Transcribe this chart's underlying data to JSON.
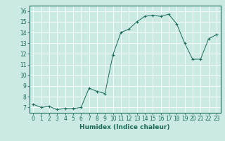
{
  "title": "",
  "xlabel": "Humidex (Indice chaleur)",
  "ylabel": "",
  "x_values": [
    0,
    1,
    2,
    3,
    4,
    5,
    6,
    7,
    8,
    9,
    10,
    11,
    12,
    13,
    14,
    15,
    16,
    17,
    18,
    19,
    20,
    21,
    22,
    23
  ],
  "y_values": [
    7.3,
    7.0,
    7.1,
    6.8,
    6.9,
    6.9,
    7.0,
    8.8,
    8.5,
    8.3,
    11.9,
    14.0,
    14.3,
    15.0,
    15.5,
    15.6,
    15.5,
    15.7,
    14.8,
    13.0,
    11.5,
    11.5,
    13.4,
    13.8
  ],
  "xlim": [
    -0.5,
    23.5
  ],
  "ylim": [
    6.5,
    16.5
  ],
  "yticks": [
    7,
    8,
    9,
    10,
    11,
    12,
    13,
    14,
    15,
    16
  ],
  "xticks": [
    0,
    1,
    2,
    3,
    4,
    5,
    6,
    7,
    8,
    9,
    10,
    11,
    12,
    13,
    14,
    15,
    16,
    17,
    18,
    19,
    20,
    21,
    22,
    23
  ],
  "line_color": "#1a6b5a",
  "marker": "+",
  "marker_size": 3,
  "bg_color": "#cceae4",
  "grid_color": "#ffffff",
  "tick_label_fontsize": 5.5,
  "xlabel_fontsize": 6.5
}
